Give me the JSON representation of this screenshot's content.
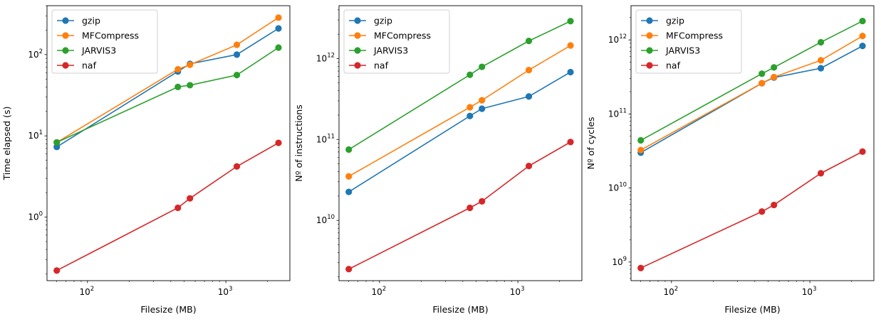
{
  "colors": {
    "gzip": "#1f77b4",
    "MFCompress": "#ff7f0e",
    "JARVIS3": "#2ca02c",
    "naf": "#d62728"
  },
  "chart_data": [
    {
      "type": "line",
      "title": "",
      "xlabel": "Filesize (MB)",
      "ylabel": "Time elapsed (s)",
      "xscale": "log",
      "yscale": "log",
      "xlim": [
        51,
        2900
      ],
      "ylim": [
        0.165,
        400
      ],
      "xticks": [
        {
          "value": 100,
          "base": "10",
          "exp": "2"
        },
        {
          "value": 1000,
          "base": "10",
          "exp": "3"
        }
      ],
      "yticks": [
        {
          "value": 1,
          "base": "10",
          "exp": "0"
        },
        {
          "value": 10,
          "base": "10",
          "exp": "1"
        },
        {
          "value": 100,
          "base": "10",
          "exp": "2"
        }
      ],
      "legend": "top-left",
      "x": [
        60,
        450,
        550,
        1200,
        2400
      ],
      "series": [
        {
          "name": "gzip",
          "color": "#1f77b4",
          "values": [
            7.3,
            62,
            77,
            100,
            210
          ]
        },
        {
          "name": "MFCompress",
          "color": "#ff7f0e",
          "values": [
            8.3,
            66,
            75,
            132,
            285
          ]
        },
        {
          "name": "JARVIS3",
          "color": "#2ca02c",
          "values": [
            8.3,
            40,
            42,
            56,
            122
          ]
        },
        {
          "name": "naf",
          "color": "#d62728",
          "values": [
            0.22,
            1.3,
            1.7,
            4.2,
            8.2
          ]
        }
      ]
    },
    {
      "type": "line",
      "title": "",
      "xlabel": "Filesize (MB)",
      "ylabel": "Nº of instructions",
      "xscale": "log",
      "yscale": "log",
      "xlim": [
        51,
        2900
      ],
      "ylim": [
        1800000000.0,
        4500000000000.0
      ],
      "xticks": [
        {
          "value": 100,
          "base": "10",
          "exp": "2"
        },
        {
          "value": 1000,
          "base": "10",
          "exp": "3"
        }
      ],
      "yticks": [
        {
          "value": 10000000000.0,
          "base": "10",
          "exp": "10"
        },
        {
          "value": 100000000000.0,
          "base": "10",
          "exp": "11"
        },
        {
          "value": 1000000000000.0,
          "base": "10",
          "exp": "12"
        }
      ],
      "legend": "top-left",
      "x": [
        60,
        450,
        550,
        1200,
        2400
      ],
      "series": [
        {
          "name": "gzip",
          "color": "#1f77b4",
          "values": [
            22500000000.0,
            195000000000.0,
            240000000000.0,
            340000000000.0,
            680000000000.0
          ]
        },
        {
          "name": "MFCompress",
          "color": "#ff7f0e",
          "values": [
            35000000000.0,
            250000000000.0,
            305000000000.0,
            720000000000.0,
            1450000000000.0
          ]
        },
        {
          "name": "JARVIS3",
          "color": "#2ca02c",
          "values": [
            75000000000.0,
            630000000000.0,
            790000000000.0,
            1650000000000.0,
            2900000000000.0
          ]
        },
        {
          "name": "naf",
          "color": "#d62728",
          "values": [
            2500000000.0,
            14300000000.0,
            17200000000.0,
            47000000000.0,
            93000000000.0
          ]
        }
      ]
    },
    {
      "type": "line",
      "title": "",
      "xlabel": "Filesize (MB)",
      "ylabel": "Nº of cycles",
      "xscale": "log",
      "yscale": "log",
      "xlim": [
        51,
        2900
      ],
      "ylim": [
        560000000.0,
        2900000000000.0
      ],
      "xticks": [
        {
          "value": 100,
          "base": "10",
          "exp": "2"
        },
        {
          "value": 1000,
          "base": "10",
          "exp": "3"
        }
      ],
      "yticks": [
        {
          "value": 1000000000.0,
          "base": "10",
          "exp": "9"
        },
        {
          "value": 10000000000.0,
          "base": "10",
          "exp": "10"
        },
        {
          "value": 100000000000.0,
          "base": "10",
          "exp": "11"
        },
        {
          "value": 1000000000000.0,
          "base": "10",
          "exp": "12"
        }
      ],
      "legend": "top-left",
      "x": [
        60,
        450,
        550,
        1200,
        2400
      ],
      "series": [
        {
          "name": "gzip",
          "color": "#1f77b4",
          "values": [
            30000000000.0,
            260000000000.0,
            310000000000.0,
            415000000000.0,
            830000000000.0
          ]
        },
        {
          "name": "MFCompress",
          "color": "#ff7f0e",
          "values": [
            32500000000.0,
            260000000000.0,
            315000000000.0,
            530000000000.0,
            1130000000000.0
          ]
        },
        {
          "name": "JARVIS3",
          "color": "#2ca02c",
          "values": [
            44000000000.0,
            350000000000.0,
            425000000000.0,
            930000000000.0,
            1800000000000.0
          ]
        },
        {
          "name": "naf",
          "color": "#d62728",
          "values": [
            830000000.0,
            4800000000.0,
            5900000000.0,
            15800000000.0,
            31000000000.0
          ]
        }
      ]
    }
  ]
}
